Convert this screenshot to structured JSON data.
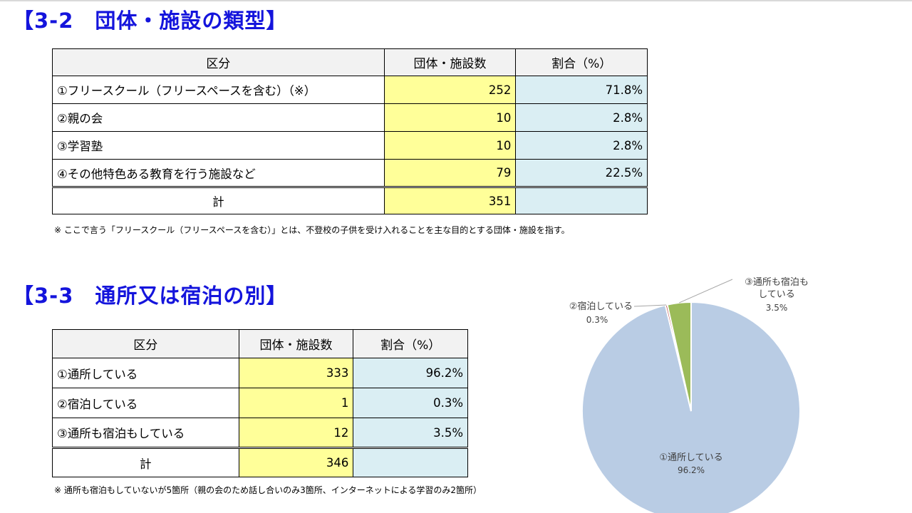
{
  "section_types": {
    "heading": "【3-2　団体・施設の類型】",
    "headers": [
      "区分",
      "団体・施設数",
      "割合（%）"
    ],
    "rows": [
      {
        "label": "①フリースクール（フリースペースを含む）（※）",
        "count": "252",
        "percent": "71.8%"
      },
      {
        "label": "②親の会",
        "count": "10",
        "percent": "2.8%"
      },
      {
        "label": "③学習塾",
        "count": "10",
        "percent": "2.8%"
      },
      {
        "label": "④その他特色ある教育を行う施設など",
        "count": "79",
        "percent": "22.5%"
      }
    ],
    "total": {
      "label": "計",
      "count": "351"
    },
    "note": "※ ここで言う「フリースクール（フリースペースを含む）」とは、不登校の子供を受け入れることを主な目的とする団体・施設を指す。"
  },
  "section_stay": {
    "heading": "【3-3　通所又は宿泊の別】",
    "headers": [
      "区分",
      "団体・施設数",
      "割合（%）"
    ],
    "rows": [
      {
        "label": "①通所している",
        "count": "333",
        "percent": "96.2%"
      },
      {
        "label": "②宿泊している",
        "count": "1",
        "percent": "0.3%"
      },
      {
        "label": "③通所も宿泊もしている",
        "count": "12",
        "percent": "3.5%"
      }
    ],
    "total": {
      "label": "計",
      "count": "346"
    },
    "note": "※ 通所も宿泊もしていないが5箇所（親の会のため話し合いのみ3箇所、インターネットによる学習のみ2箇所）"
  },
  "chart_data": {
    "type": "pie",
    "slices": [
      {
        "name": "①通所している",
        "value": 96.2,
        "label": "96.2%",
        "color": "#b9cce4"
      },
      {
        "name": "②宿泊している",
        "value": 0.3,
        "label": "0.3%",
        "color": "#c0504d"
      },
      {
        "name": "③通所も宿泊もしている",
        "value": 3.5,
        "label": "3.5%",
        "color": "#9bbb59"
      }
    ],
    "slice_labels": {
      "s0": [
        "①通所している",
        "96.2%"
      ],
      "s1": [
        "②宿泊している",
        "0.3%"
      ],
      "s2": [
        "③通所も宿泊も",
        "している",
        "3.5%"
      ]
    },
    "start_angle": "12 o'clock",
    "direction": "clockwise",
    "legend": "none"
  }
}
